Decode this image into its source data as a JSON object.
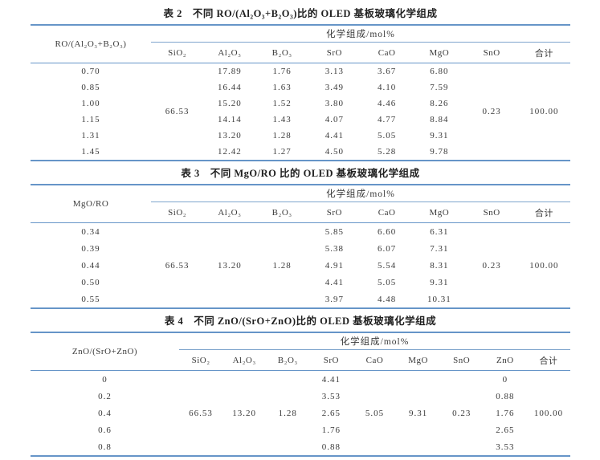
{
  "colors": {
    "rule": "#6695c8",
    "rule_light": "#7fa5cd",
    "text": "#3a3a3a",
    "title": "#1f1f1f",
    "background": "#ffffff"
  },
  "tables": [
    {
      "title": "表 2　不同 RO/(Al₂O₃+B₂O₃)比的 OLED 基板玻璃化学组成",
      "stub_header": "RO/(Al₂O₃+B₂O₃)",
      "spanner": "化学组成/mol%",
      "columns": [
        "SiO₂",
        "Al₂O₃",
        "B₂O₃",
        "SrO",
        "CaO",
        "MgO",
        "SnO",
        "合计"
      ],
      "merged": {
        "0": "66.53",
        "6": "0.23",
        "7": "100.00"
      },
      "rows": [
        {
          "ratio": "0.70",
          "values": [
            null,
            "17.89",
            "1.76",
            "3.13",
            "3.67",
            "6.80",
            null,
            null
          ]
        },
        {
          "ratio": "0.85",
          "values": [
            null,
            "16.44",
            "1.63",
            "3.49",
            "4.10",
            "7.59",
            null,
            null
          ]
        },
        {
          "ratio": "1.00",
          "values": [
            null,
            "15.20",
            "1.52",
            "3.80",
            "4.46",
            "8.26",
            null,
            null
          ]
        },
        {
          "ratio": "1.15",
          "values": [
            null,
            "14.14",
            "1.43",
            "4.07",
            "4.77",
            "8.84",
            null,
            null
          ]
        },
        {
          "ratio": "1.31",
          "values": [
            null,
            "13.20",
            "1.28",
            "4.41",
            "5.05",
            "9.31",
            null,
            null
          ]
        },
        {
          "ratio": "1.45",
          "values": [
            null,
            "12.42",
            "1.27",
            "4.50",
            "5.28",
            "9.78",
            null,
            null
          ]
        }
      ]
    },
    {
      "title": "表 3　不同 MgO/RO 比的 OLED 基板玻璃化学组成",
      "stub_header": "MgO/RO",
      "spanner": "化学组成/mol%",
      "columns": [
        "SiO₂",
        "Al₂O₃",
        "B₂O₃",
        "SrO",
        "CaO",
        "MgO",
        "SnO",
        "合计"
      ],
      "merged": {
        "0": "66.53",
        "1": "13.20",
        "2": "1.28",
        "6": "0.23",
        "7": "100.00"
      },
      "rows": [
        {
          "ratio": "0.34",
          "values": [
            null,
            null,
            null,
            "5.85",
            "6.60",
            "6.31",
            null,
            null
          ]
        },
        {
          "ratio": "0.39",
          "values": [
            null,
            null,
            null,
            "5.38",
            "6.07",
            "7.31",
            null,
            null
          ]
        },
        {
          "ratio": "0.44",
          "values": [
            null,
            null,
            null,
            "4.91",
            "5.54",
            "8.31",
            null,
            null
          ]
        },
        {
          "ratio": "0.50",
          "values": [
            null,
            null,
            null,
            "4.41",
            "5.05",
            "9.31",
            null,
            null
          ]
        },
        {
          "ratio": "0.55",
          "values": [
            null,
            null,
            null,
            "3.97",
            "4.48",
            "10.31",
            null,
            null
          ]
        }
      ]
    },
    {
      "title": "表 4　不同 ZnO/(SrO+ZnO)比的 OLED 基板玻璃化学组成",
      "stub_header": "ZnO/(SrO+ZnO)",
      "spanner": "化学组成/mol%",
      "columns": [
        "SiO₂",
        "Al₂O₃",
        "B₂O₃",
        "SrO",
        "CaO",
        "MgO",
        "SnO",
        "ZnO",
        "合计"
      ],
      "merged": {
        "0": "66.53",
        "1": "13.20",
        "2": "1.28",
        "4": "5.05",
        "5": "9.31",
        "6": "0.23",
        "8": "100.00"
      },
      "rows": [
        {
          "ratio": "0",
          "values": [
            null,
            null,
            null,
            "4.41",
            null,
            null,
            null,
            "0",
            null
          ]
        },
        {
          "ratio": "0.2",
          "values": [
            null,
            null,
            null,
            "3.53",
            null,
            null,
            null,
            "0.88",
            null
          ]
        },
        {
          "ratio": "0.4",
          "values": [
            null,
            null,
            null,
            "2.65",
            null,
            null,
            null,
            "1.76",
            null
          ]
        },
        {
          "ratio": "0.6",
          "values": [
            null,
            null,
            null,
            "1.76",
            null,
            null,
            null,
            "2.65",
            null
          ]
        },
        {
          "ratio": "0.8",
          "values": [
            null,
            null,
            null,
            "0.88",
            null,
            null,
            null,
            "3.53",
            null
          ]
        }
      ]
    }
  ]
}
